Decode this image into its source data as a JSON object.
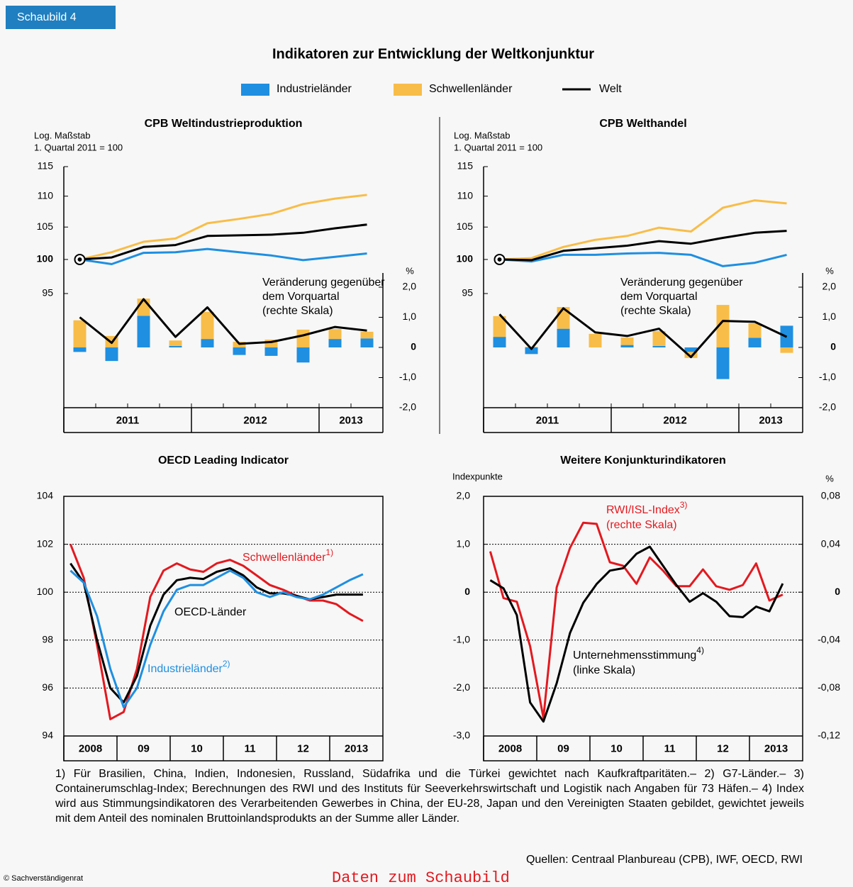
{
  "header": {
    "tab": "Schaubild 4",
    "title": "Indikatoren zur Entwicklung der Weltkonjunktur"
  },
  "chart_data": [
    {
      "type": "combo",
      "title": "CPB Weltindustrieproduktion",
      "ylabel": [
        "Log. Maßstab",
        "1. Quartal 2011 = 100"
      ],
      "y2label": "%",
      "annotation": [
        "Veränderung gegenüber",
        "dem Vorquartal",
        "(rechte Skala)"
      ],
      "categories": [
        "2011",
        null,
        null,
        null,
        "2012",
        null,
        null,
        null,
        "2013",
        null
      ],
      "ylog": true,
      "ylim": [
        80,
        115
      ],
      "yticks": [
        95,
        100,
        105,
        110,
        115
      ],
      "y2lim": [
        -2,
        6
      ],
      "y2ticks": [
        {
          "value": -2,
          "label": "-2,0"
        },
        {
          "value": -1,
          "label": "-1,0"
        },
        0,
        {
          "value": 1,
          "label": "1,0"
        },
        {
          "value": 2,
          "label": "2,0"
        }
      ],
      "series": [
        {
          "name": "Industrieländer",
          "color": "#1e8fe1",
          "kind": "bar",
          "axis": "y2",
          "values": [
            -0.15,
            -0.45,
            1.05,
            0.05,
            0.28,
            -0.25,
            -0.28,
            -0.5,
            0.28,
            0.3
          ]
        },
        {
          "name": "Schwellenländer",
          "color": "#f8bd48",
          "kind": "bar",
          "axis": "y2",
          "values": [
            0.9,
            0.38,
            0.57,
            0.18,
            0.9,
            0.19,
            0.26,
            0.59,
            0.33,
            0.22
          ]
        },
        {
          "name": "Welt",
          "color": "#000000",
          "kind": "line",
          "axis": "y2",
          "values": [
            1.0,
            0.15,
            1.6,
            0.35,
            1.33,
            0.12,
            0.18,
            0.4,
            0.68,
            0.56
          ]
        },
        {
          "name": "Industrieländer",
          "color": "#1e8fe1",
          "kind": "line",
          "axis": "y",
          "values": [
            100,
            99.3,
            101.0,
            101.1,
            101.6,
            101.1,
            100.6,
            99.9,
            100.4,
            100.9
          ]
        },
        {
          "name": "Schwellenländer",
          "color": "#f8bd48",
          "kind": "line",
          "axis": "y",
          "values": [
            100,
            101.1,
            102.7,
            103.2,
            105.6,
            106.3,
            107.1,
            108.7,
            109.6,
            110.2
          ]
        },
        {
          "name": "Welt",
          "color": "#000000",
          "kind": "line",
          "axis": "y",
          "values": [
            100,
            100.3,
            101.9,
            102.2,
            103.6,
            103.7,
            103.8,
            104.1,
            104.8,
            105.4
          ]
        }
      ]
    },
    {
      "type": "combo",
      "title": "CPB Welthandel",
      "ylabel": [
        "Log. Maßstab",
        "1. Quartal 2011 = 100"
      ],
      "y2label": "%",
      "annotation": [
        "Veränderung gegenüber",
        "dem Vorquartal",
        "(rechte Skala)"
      ],
      "categories": [
        "2011",
        null,
        null,
        null,
        "2012",
        null,
        null,
        null,
        "2013",
        null
      ],
      "ylog": true,
      "ylim": [
        80,
        115
      ],
      "yticks": [
        95,
        100,
        105,
        110,
        115
      ],
      "y2lim": [
        -2,
        6
      ],
      "y2ticks": [
        {
          "value": -2,
          "label": "-2,0"
        },
        {
          "value": -1,
          "label": "-1,0"
        },
        0,
        {
          "value": 1,
          "label": "1,0"
        },
        {
          "value": 2,
          "label": "2,0"
        }
      ],
      "series": [
        {
          "name": "Industrieländer",
          "color": "#1e8fe1",
          "kind": "bar",
          "axis": "y2",
          "values": [
            0.35,
            -0.22,
            0.62,
            0.0,
            0.08,
            0.05,
            -0.15,
            -1.05,
            0.32,
            0.72
          ]
        },
        {
          "name": "Schwellenländer",
          "color": "#f8bd48",
          "kind": "bar",
          "axis": "y2",
          "values": [
            0.69,
            0.02,
            0.72,
            0.45,
            0.25,
            0.49,
            -0.2,
            1.41,
            0.48,
            -0.18
          ]
        },
        {
          "name": "Welt",
          "color": "#000000",
          "kind": "line",
          "axis": "y2",
          "values": [
            1.1,
            -0.05,
            1.3,
            0.5,
            0.38,
            0.62,
            -0.32,
            0.88,
            0.85,
            0.35
          ]
        },
        {
          "name": "Industrieländer",
          "color": "#1e8fe1",
          "kind": "line",
          "axis": "y",
          "values": [
            100,
            99.7,
            100.7,
            100.7,
            100.9,
            101.0,
            100.7,
            99.0,
            99.5,
            100.7
          ]
        },
        {
          "name": "Schwellenländer",
          "color": "#f8bd48",
          "kind": "line",
          "axis": "y",
          "values": [
            100,
            100.2,
            101.9,
            103.0,
            103.6,
            104.9,
            104.3,
            108.1,
            109.3,
            108.8
          ]
        },
        {
          "name": "Welt",
          "color": "#000000",
          "kind": "line",
          "axis": "y",
          "values": [
            100,
            99.9,
            101.3,
            101.7,
            102.1,
            102.8,
            102.4,
            103.3,
            104.1,
            104.4
          ]
        }
      ]
    },
    {
      "type": "line",
      "title": "OECD Leading Indicator",
      "categories": [
        "2008",
        null,
        null,
        null,
        "09",
        null,
        null,
        null,
        "10",
        null,
        null,
        null,
        "11",
        null,
        null,
        null,
        "12",
        null,
        null,
        null,
        "2013",
        null,
        null,
        null
      ],
      "ylim": [
        94,
        104
      ],
      "yticks": [
        94,
        96,
        98,
        100,
        102,
        104
      ],
      "grid": true,
      "series": [
        {
          "name": "Schwellenländer",
          "note": "1)",
          "color": "#e3191f",
          "values": [
            102.0,
            100.6,
            97.8,
            94.7,
            95.0,
            96.8,
            99.8,
            100.9,
            101.2,
            100.95,
            100.85,
            101.2,
            101.35,
            101.1,
            100.7,
            100.3,
            100.1,
            99.85,
            99.65,
            99.65,
            99.5,
            99.1,
            98.8,
            null
          ]
        },
        {
          "name": "OECD-Länder",
          "color": "#000000",
          "values": [
            101.2,
            100.4,
            98.0,
            96.0,
            95.4,
            96.5,
            98.6,
            99.9,
            100.5,
            100.6,
            100.55,
            100.85,
            101.0,
            100.7,
            100.2,
            99.95,
            99.95,
            99.85,
            99.7,
            99.8,
            99.9,
            99.9,
            99.9,
            null
          ]
        },
        {
          "name": "Industrieländer",
          "note": "2)",
          "color": "#1e8fe1",
          "values": [
            100.9,
            100.4,
            99.0,
            96.8,
            95.2,
            96.0,
            97.8,
            99.2,
            100.1,
            100.3,
            100.3,
            100.6,
            100.9,
            100.6,
            100.0,
            99.8,
            100.0,
            99.8,
            99.7,
            99.9,
            100.2,
            100.5,
            100.75,
            null
          ]
        }
      ]
    },
    {
      "type": "line",
      "title": "Weitere Konjunkturindikatoren",
      "ylabel": [
        "Indexpunkte"
      ],
      "y2label": "%",
      "categories": [
        "2008",
        null,
        null,
        null,
        "09",
        null,
        null,
        null,
        "10",
        null,
        null,
        null,
        "11",
        null,
        null,
        null,
        "12",
        null,
        null,
        null,
        "2013",
        null,
        null,
        null
      ],
      "ylim": [
        -3,
        2
      ],
      "yticks": [
        {
          "value": -3,
          "label": "-3,0"
        },
        {
          "value": -2,
          "label": "-2,0"
        },
        {
          "value": -1,
          "label": "-1,0"
        },
        0,
        {
          "value": 1,
          "label": "1,0"
        },
        {
          "value": 2,
          "label": "2,0"
        }
      ],
      "y2lim": [
        -0.12,
        0.08
      ],
      "y2ticks": [
        {
          "value": -0.12,
          "label": "-0,12"
        },
        {
          "value": -0.08,
          "label": "-0,08"
        },
        {
          "value": -0.04,
          "label": "-0,04"
        },
        0,
        {
          "value": 0.04,
          "label": "0,04"
        },
        {
          "value": 0.08,
          "label": "0,08"
        }
      ],
      "grid": true,
      "series": [
        {
          "name": "RWI/ISL-Index",
          "note": "3)",
          "sublabel": "(rechte Skala)",
          "color": "#e3191f",
          "axis": "y2",
          "values": [
            0.034,
            -0.005,
            -0.008,
            -0.045,
            -0.105,
            0.004,
            0.037,
            0.058,
            0.057,
            0.025,
            0.022,
            0.007,
            0.029,
            0.018,
            0.005,
            0.005,
            0.019,
            0.005,
            0.002,
            0.006,
            0.024,
            -0.007,
            -0.002,
            null
          ]
        },
        {
          "name": "Unternehmensstimmung",
          "note": "4)",
          "sublabel": "(linke Skala)",
          "color": "#000000",
          "axis": "y",
          "values": [
            0.25,
            0.08,
            -0.48,
            -2.3,
            -2.7,
            -1.9,
            -0.85,
            -0.22,
            0.17,
            0.45,
            0.5,
            0.8,
            0.95,
            0.55,
            0.15,
            -0.2,
            -0.02,
            -0.2,
            -0.5,
            -0.52,
            -0.3,
            -0.4,
            0.18,
            null
          ]
        }
      ]
    }
  ],
  "footnotes": "1) Für Brasilien, China, Indien, Indonesien, Russland, Südafrika und die Türkei gewichtet nach Kaufkraftparitäten.– 2) G7-Länder.– 3) Containerumschlag-Index; Berechnungen des RWI und des Instituts für Seeverkehrswirtschaft und Logistik nach Angaben für 73 Häfen.– 4) Index wird aus Stimmungsindikatoren des Verarbeitenden Gewerbes in China, der EU-28, Japan und den Vereinigten Staaten gebildet, gewichtet jeweils mit dem Anteil des nominalen Bruttoinlandsprodukts an der Summe aller Länder.",
  "sources": "Quellen: Centraal Planbureau (CPB), IWF, OECD, RWI",
  "copyright": "© Sachverständigenrat",
  "link": "Daten zum Schaubild"
}
